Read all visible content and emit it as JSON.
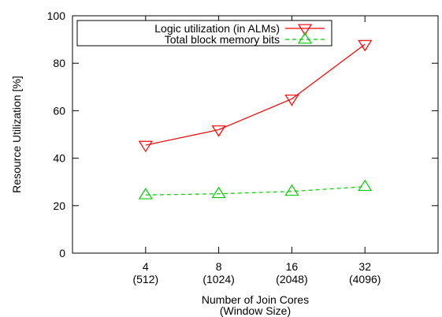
{
  "chart_data": {
    "type": "line",
    "title": "",
    "xlabel": [
      "Number of Join Cores",
      "(Window Size)"
    ],
    "ylabel": "Resource Utilization [%]",
    "xlim": [
      0,
      5
    ],
    "ylim": [
      0,
      100
    ],
    "xticks": [
      {
        "x": 1,
        "label": "4",
        "sublabel": "(512)"
      },
      {
        "x": 2,
        "label": "8",
        "sublabel": "(1024)"
      },
      {
        "x": 3,
        "label": "16",
        "sublabel": "(2048)"
      },
      {
        "x": 4,
        "label": "32",
        "sublabel": "(4096)"
      }
    ],
    "yticks": [
      0,
      20,
      40,
      60,
      80,
      100
    ],
    "grid": false,
    "legend": "top-left",
    "series": [
      {
        "name": "Logic utilization (in ALMs)",
        "color": "#ff0000",
        "dash": "solid",
        "marker": "triangle-down",
        "x": [
          1,
          2,
          3,
          4
        ],
        "values": [
          45.5,
          52,
          65,
          88
        ]
      },
      {
        "name": "Total block memory bits",
        "color": "#00cc00",
        "dash": "dashed",
        "marker": "triangle-up",
        "x": [
          1,
          2,
          3,
          4
        ],
        "values": [
          24.5,
          25,
          26,
          28
        ]
      }
    ]
  }
}
